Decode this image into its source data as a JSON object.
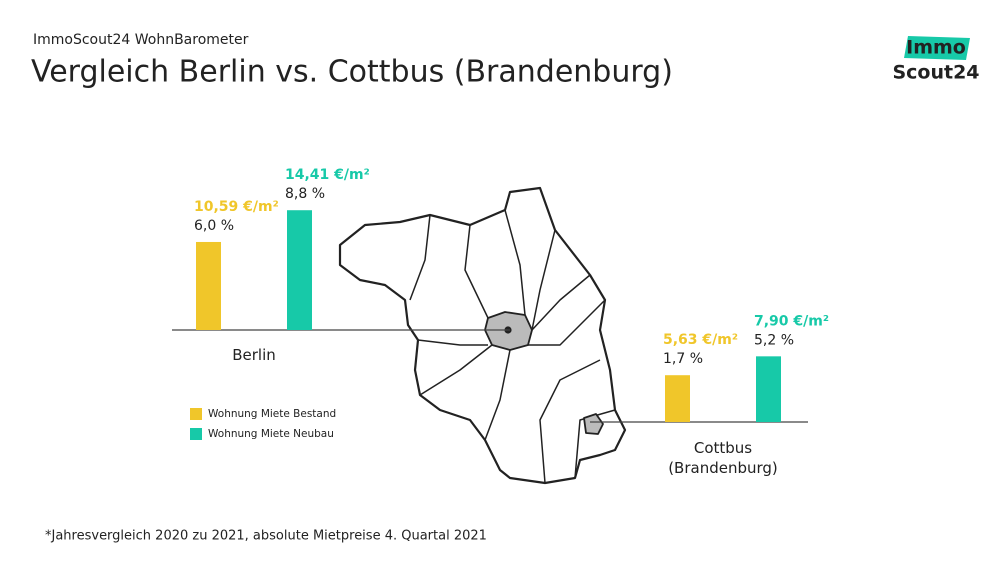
{
  "header": {
    "kicker": "ImmoScout24 WohnBarometer",
    "title": "Vergleich Berlin vs. Cottbus (Brandenburg)"
  },
  "logo": {
    "line1": "Immo",
    "line2": "Scout24"
  },
  "chart_data": {
    "type": "bar",
    "categories": [
      "Berlin",
      "Cottbus (Brandenburg)"
    ],
    "ylim": [
      0,
      16
    ],
    "series": [
      {
        "name": "Wohnung Miete Bestand",
        "color": "#f0c62a",
        "values": [
          10.59,
          5.63
        ],
        "value_labels": [
          "10,59 €/m²",
          "5,63 €/m²"
        ],
        "change_labels": [
          "6,0 %",
          "1,7 %"
        ]
      },
      {
        "name": "Wohnung Miete Neubau",
        "color": "#17c9a8",
        "values": [
          14.41,
          7.9
        ],
        "value_labels": [
          "14,41 €/m²",
          "7,90 €/m²"
        ],
        "change_labels": [
          "8,8 %",
          "5,2 %"
        ]
      }
    ]
  },
  "footnote": "*Jahresvergleich 2020 zu 2021, absolute Mietpreise 4. Quartal 2021"
}
